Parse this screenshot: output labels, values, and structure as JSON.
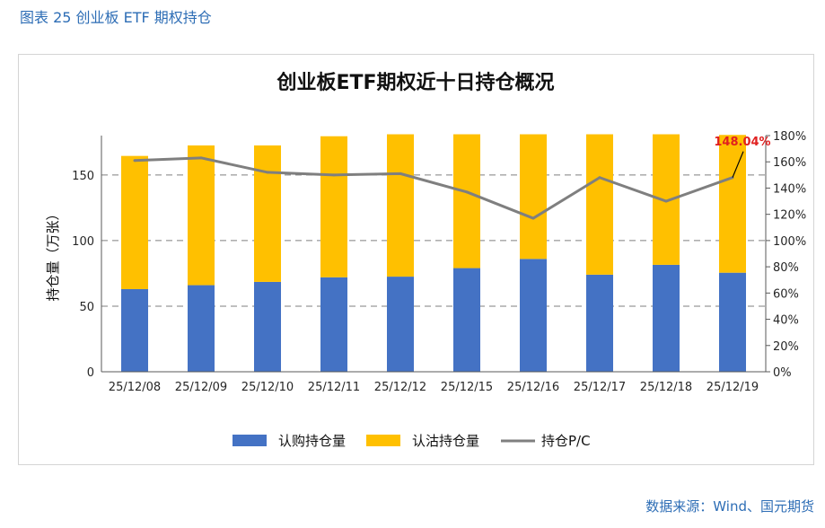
{
  "caption": "图表 25 创业板 ETF 期权持仓",
  "source": "数据来源：Wind、国元期货",
  "chart_data": {
    "type": "bar",
    "stacked": true,
    "title": "创业板ETF期权近十日持仓概况",
    "ylabel": "持仓量（万张）",
    "xlabel": "",
    "categories": [
      "25/12/08",
      "25/12/09",
      "25/12/10",
      "25/12/11",
      "25/12/12",
      "25/12/15",
      "25/12/16",
      "25/12/17",
      "25/12/18",
      "25/12/19"
    ],
    "series": [
      {
        "name": "认购持仓量",
        "axis": "left",
        "color": "#4472c4",
        "values": [
          63,
          66,
          68.5,
          72,
          72.5,
          79,
          86,
          74,
          81.5,
          75.5
        ]
      },
      {
        "name": "认沽持仓量",
        "axis": "left",
        "color": "#ffc000",
        "values": [
          101.5,
          106.5,
          104,
          107.5,
          108.5,
          102,
          95,
          107,
          99.5,
          105
        ]
      },
      {
        "name": "持仓P/C",
        "axis": "right",
        "type": "line",
        "color": "#7f7f7f",
        "values": [
          1.61,
          1.63,
          1.52,
          1.5,
          1.51,
          1.37,
          1.17,
          1.48,
          1.3,
          1.4804
        ]
      }
    ],
    "ylim": [
      0,
      180
    ],
    "yticks": [
      0,
      50,
      100,
      150
    ],
    "y2lim": [
      0,
      1.8
    ],
    "y2ticks": [
      "0%",
      "20%",
      "40%",
      "60%",
      "80%",
      "100%",
      "120%",
      "140%",
      "160%",
      "180%"
    ],
    "gridlines": [
      50,
      100,
      150
    ],
    "annotation": {
      "text": "148.04%",
      "index": 9
    },
    "legend_position": "bottom"
  }
}
